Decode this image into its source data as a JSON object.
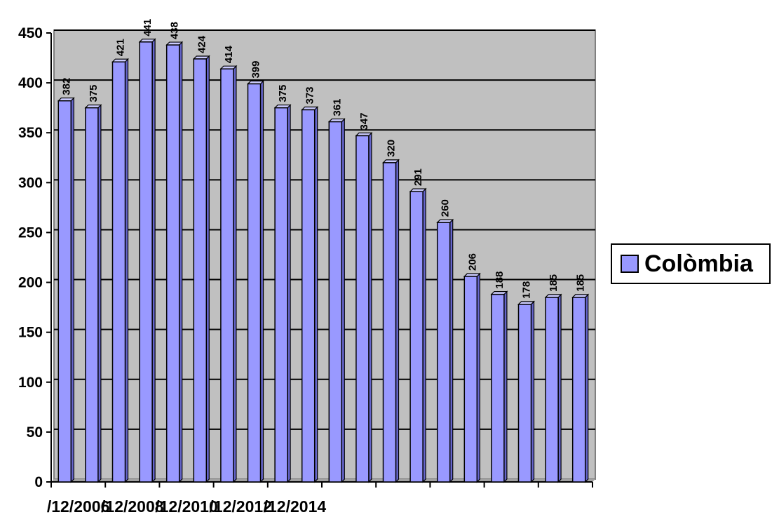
{
  "chart_data": {
    "type": "bar",
    "title": "",
    "xlabel": "",
    "ylabel": "",
    "ylim": [
      0,
      450
    ],
    "yticks": [
      0,
      50,
      100,
      150,
      200,
      250,
      300,
      350,
      400,
      450
    ],
    "x_tick_labels": [
      "/12/2006",
      "/12/2008",
      "/12/2010",
      "/12/2012",
      "/12/2014"
    ],
    "grid": true,
    "three_d": true,
    "legend_position": "right",
    "series": [
      {
        "name": "Colòmbia",
        "values": [
          382,
          375,
          421,
          441,
          438,
          424,
          414,
          399,
          375,
          373,
          361,
          347,
          320,
          291,
          260,
          206,
          188,
          178,
          185,
          185
        ]
      }
    ],
    "data_labels": [
      "382",
      "375",
      "421",
      "441",
      "438",
      "424",
      "414",
      "399",
      "375",
      "373",
      "361",
      "347",
      "320",
      "291",
      "260",
      "206",
      "188",
      "178",
      "185",
      "185"
    ]
  },
  "colors": {
    "plot_background": "#c0c0c0",
    "bar_front": "#9999ff",
    "bar_top": "#ccccff",
    "bar_side": "#6666cc",
    "gridline": "#000000"
  }
}
